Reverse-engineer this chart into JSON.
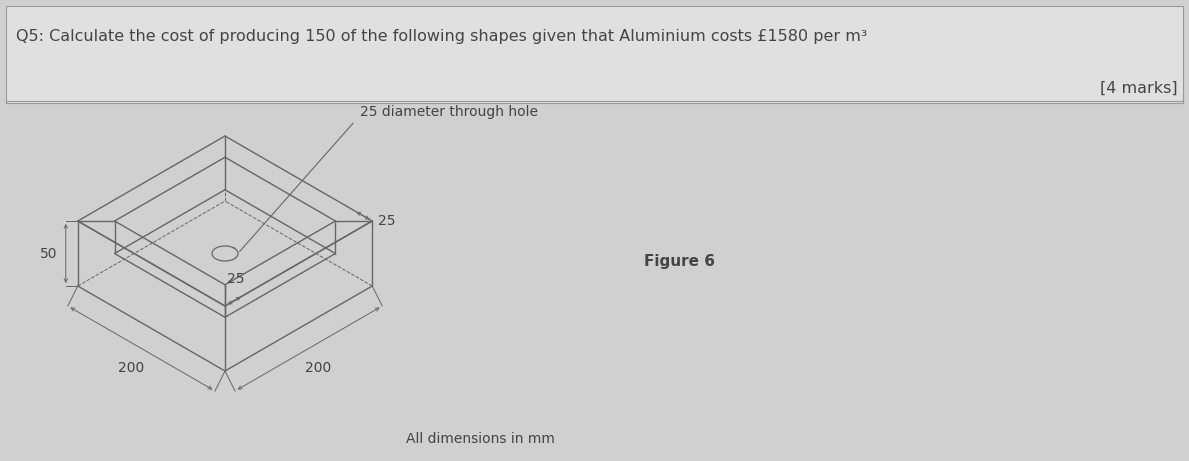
{
  "title_line1": "Q5: Calculate the cost of producing 150 of the following shapes given that Aluminium costs £1580 per m³",
  "title_line2": "[4 marks]",
  "figure_label": "Figure 6",
  "all_dims_label": "All dimensions in mm",
  "hole_label": "25 diameter through hole",
  "dim_25_top": "25",
  "dim_25_side": "25",
  "dim_50": "50",
  "dim_200_left": "200",
  "dim_200_right": "200",
  "bg_color": "#d0d0d0",
  "title_bg": "#e0e0e0",
  "line_color": "#666666",
  "text_color": "#444444",
  "title_fontsize": 11.5,
  "label_fontsize": 10,
  "dim_fontsize": 10
}
